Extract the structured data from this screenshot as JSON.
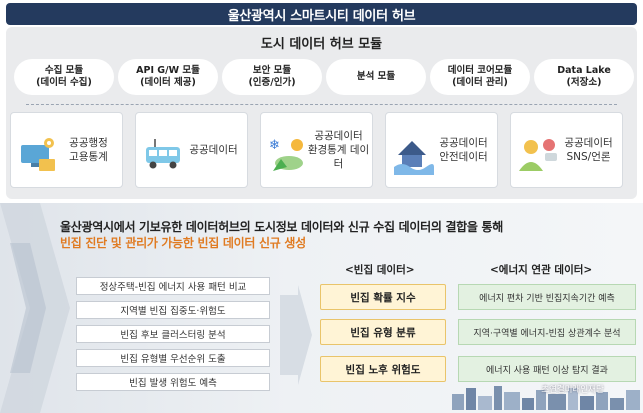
{
  "title": "울산광역시 스마트시티 데이터 허브",
  "hub": {
    "title": "도시 데이터 허브 모듈",
    "modules": [
      {
        "line1": "수집 모듈",
        "line2": "(데이터 수집)"
      },
      {
        "line1": "API G/W 모듈",
        "line2": "(데이터 제공)"
      },
      {
        "line1": "보안 모듈",
        "line2": "(인증/인가)"
      },
      {
        "line1": "분석 모듈",
        "line2": ""
      },
      {
        "line1": "데이터 코어모듈",
        "line2": "(데이터 관리)"
      },
      {
        "line1": "Data Lake",
        "line2": "(저장소)"
      }
    ],
    "sources": [
      {
        "line1": "공공행정",
        "line2": "고용통계",
        "icon": "computer-gear-icon"
      },
      {
        "line1": "공공데이터",
        "line2": "",
        "icon": "bus-icon"
      },
      {
        "line1": "공공데이터",
        "line2": "환경통계 데이터",
        "icon": "weather-icon"
      },
      {
        "line1": "공공데이터",
        "line2": "안전데이터",
        "icon": "house-flood-icon"
      },
      {
        "line1": "공공데이터",
        "line2": "SNS/언론",
        "icon": "people-chat-icon"
      }
    ]
  },
  "description": {
    "line1": "울산광역시에서 기보유한 데이터허브의 도시정보 데이터와 신규 수집 데이터의 결합을 통해",
    "line2": "빈집 진단 및 관리가 가능한 빈집 데이터 신규 생성"
  },
  "methods": [
    "정상주택-빈집 에너지 사용 패턴 비교",
    "지역별 빈집 집중도·위험도",
    "빈집 후보 클러스터링 분석",
    "빈집 유형별 우선순위 도출",
    "빈집 발생 위험도 예측"
  ],
  "vacancy_header": "<빈집 데이터>",
  "vacancy_data": [
    "빈집 확률 지수",
    "빈집 유형 분류",
    "빈집 노후 위험도"
  ],
  "energy_header": "<에너지 연관 데이터>",
  "energy_data": [
    "에너지 편차 기반 빈집지속기간 예측",
    "지역·구역별 에너지-빈집 상관계수 분석",
    "에너지 사용 패턴 이상 탐지 결과"
  ],
  "watermark": "초연결미래인재단",
  "colors": {
    "title_bg": "#243a5e",
    "accent": "#e07b22",
    "panel": "#eaebed",
    "vacancy_bg": "#fff4d6",
    "energy_bg": "#e3f1e1"
  }
}
